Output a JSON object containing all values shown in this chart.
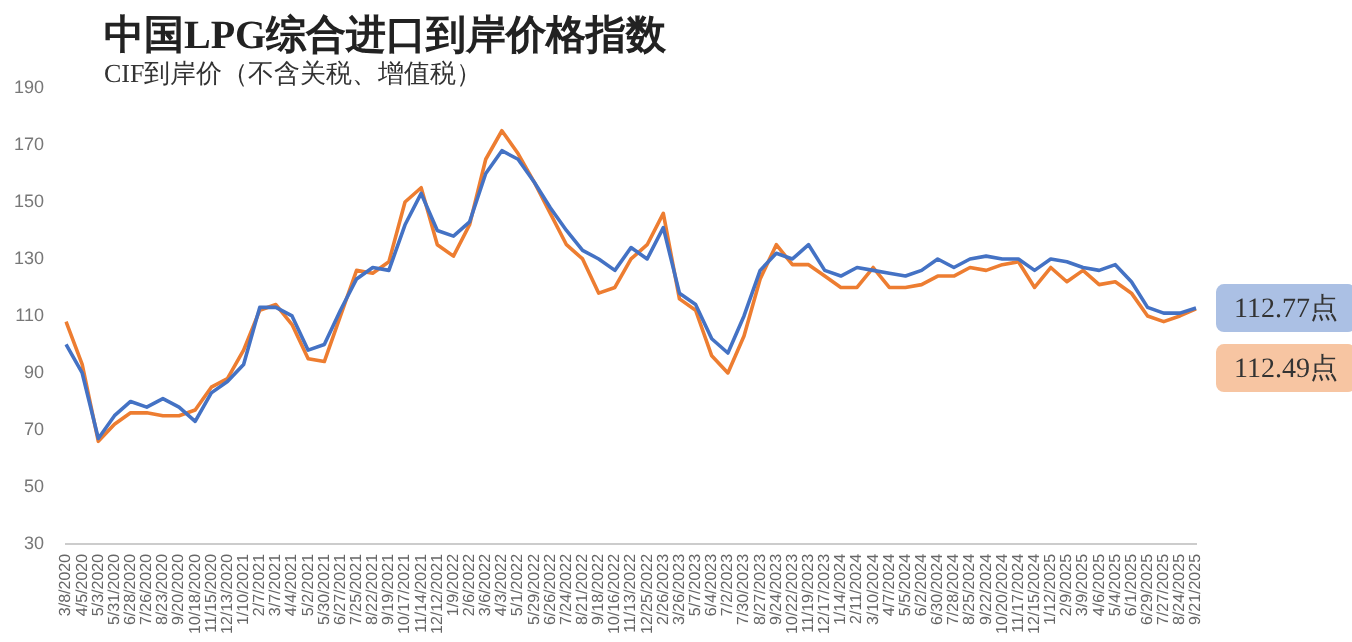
{
  "chart_data": {
    "type": "line",
    "title": "中国LPG综合进口到岸价格指数",
    "subtitle": "CIF到岸价（不含关税、增值税）",
    "categories": [
      "3/8/2020",
      "4/5/2020",
      "5/3/2020",
      "5/31/2020",
      "6/28/2020",
      "7/26/2020",
      "8/23/2020",
      "9/20/2020",
      "10/18/2020",
      "11/15/2020",
      "12/13/2020",
      "1/10/2021",
      "2/7/2021",
      "3/7/2021",
      "4/4/2021",
      "5/2/2021",
      "5/30/2021",
      "6/27/2021",
      "7/25/2021",
      "8/22/2021",
      "9/19/2021",
      "10/17/2021",
      "11/14/2021",
      "12/12/2021",
      "1/9/2022",
      "2/6/2022",
      "3/6/2022",
      "4/3/2022",
      "5/1/2022",
      "5/29/2022",
      "6/26/2022",
      "7/24/2022",
      "8/21/2022",
      "9/18/2022",
      "10/16/2022",
      "11/13/2022",
      "12/25/2022",
      "2/26/2023",
      "3/26/2023",
      "5/7/2023",
      "6/4/2023",
      "7/2/2023",
      "7/30/2023",
      "8/27/2023",
      "9/24/2023",
      "10/22/2023",
      "11/19/2023",
      "12/17/2023",
      "1/14/2024",
      "2/11/2024",
      "3/10/2024",
      "4/7/2024",
      "5/5/2024",
      "6/2/2024",
      "6/30/2024",
      "7/28/2024",
      "8/25/2024",
      "9/22/2024",
      "10/20/2024",
      "11/17/2024",
      "12/15/2024",
      "1/12/2025",
      "2/9/2025",
      "3/9/2025",
      "4/6/2025",
      "5/4/2025",
      "6/1/2025",
      "6/29/2025",
      "7/27/2025",
      "8/24/2025",
      "9/21/2025"
    ],
    "series": [
      {
        "color": "#4472c4",
        "values": [
          100,
          90,
          67,
          75,
          80,
          78,
          81,
          78,
          73,
          83,
          87,
          93,
          113,
          113,
          110,
          98,
          100,
          112,
          123,
          127,
          126,
          142,
          153,
          140,
          138,
          143,
          160,
          168,
          165,
          157,
          148,
          140,
          133,
          130,
          126,
          134,
          130,
          141,
          118,
          114,
          102,
          97,
          110,
          126,
          132,
          130,
          135,
          126,
          124,
          127,
          126,
          125,
          124,
          126,
          130,
          127,
          130,
          131,
          130,
          130,
          126,
          130,
          129,
          127,
          126,
          128,
          122,
          113,
          111,
          111,
          112.77
        ],
        "value_labels": [
          null,
          null,
          null,
          null,
          null,
          null,
          null,
          null,
          null,
          null,
          null,
          null,
          null,
          null,
          null,
          null,
          null,
          null,
          null,
          null,
          null,
          null,
          null,
          null,
          null,
          null,
          null,
          null,
          null,
          null,
          null,
          null,
          null,
          null,
          null,
          null,
          null,
          null,
          null,
          null,
          null,
          null,
          null,
          null,
          null,
          null,
          null,
          null,
          null,
          null,
          null,
          null,
          null,
          null,
          null,
          null,
          null,
          null,
          null,
          null,
          null,
          null,
          null,
          null,
          null,
          null,
          null,
          null,
          null,
          null,
          "112.77点"
        ]
      },
      {
        "color": "#ed7d31",
        "values": [
          108,
          93,
          66,
          72,
          76,
          76,
          75,
          75,
          77,
          85,
          88,
          98,
          112,
          114,
          107,
          95,
          94,
          110,
          126,
          125,
          129,
          150,
          155,
          135,
          131,
          142,
          165,
          175,
          167,
          157,
          146,
          135,
          130,
          118,
          120,
          130,
          135,
          146,
          116,
          112,
          96,
          90,
          103,
          123,
          135,
          128,
          128,
          124,
          120,
          120,
          127,
          120,
          120,
          121,
          124,
          124,
          127,
          126,
          128,
          129,
          120,
          127,
          122,
          126,
          121,
          122,
          118,
          110,
          108,
          110,
          112.49
        ],
        "value_labels": [
          null,
          null,
          null,
          null,
          null,
          null,
          null,
          null,
          null,
          null,
          null,
          null,
          null,
          null,
          null,
          null,
          null,
          null,
          null,
          null,
          null,
          null,
          null,
          null,
          null,
          null,
          null,
          null,
          null,
          null,
          null,
          null,
          null,
          null,
          null,
          null,
          null,
          null,
          null,
          null,
          null,
          null,
          null,
          null,
          null,
          null,
          null,
          null,
          null,
          null,
          null,
          null,
          null,
          null,
          null,
          null,
          null,
          null,
          null,
          null,
          null,
          null,
          null,
          null,
          null,
          null,
          null,
          null,
          null,
          null,
          "112.49点"
        ]
      }
    ],
    "ylim": [
      30,
      190
    ],
    "yticks": [
      30,
      50,
      70,
      90,
      110,
      130,
      150,
      170,
      190
    ],
    "grid": false,
    "legend": false,
    "marker": "none",
    "line_style": "solid"
  }
}
